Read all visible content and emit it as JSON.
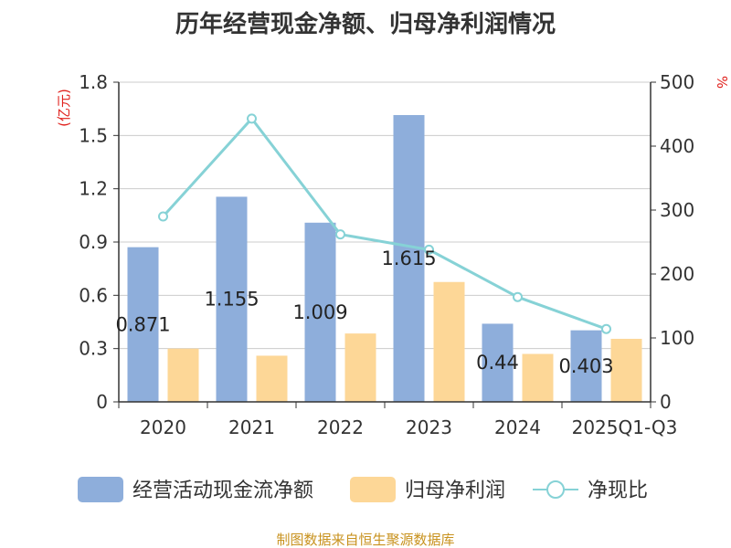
{
  "title": "历年经营现金净额、归母净利润情况",
  "source": "制图数据来自恒生聚源数据库",
  "colors": {
    "bar1": "#8eaedb",
    "bar2": "#fdd797",
    "line": "#86d2d6",
    "unit": "#e0201c",
    "source": "#c8921e"
  },
  "chart_data": {
    "type": "bar",
    "categories": [
      "2020",
      "2021",
      "2022",
      "2023",
      "2024",
      "2025Q1-Q3"
    ],
    "y_left": {
      "unit": "(亿元)",
      "ticks": [
        "0",
        "0.3",
        "0.6",
        "0.9",
        "1.2",
        "1.5",
        "1.8"
      ],
      "range": [
        0,
        1.8
      ]
    },
    "y_right": {
      "unit": "%",
      "ticks": [
        "0",
        "100",
        "200",
        "300",
        "400",
        "500"
      ],
      "range": [
        0,
        500
      ]
    },
    "series": [
      {
        "name": "经营活动现金流净额",
        "type": "bar",
        "axis": "left",
        "values": [
          0.871,
          1.155,
          1.009,
          1.615,
          0.44,
          0.403
        ],
        "labels": [
          "0.871",
          "1.155",
          "1.009",
          "1.615",
          "0.44",
          "0.403"
        ]
      },
      {
        "name": "归母净利润",
        "type": "bar",
        "axis": "left",
        "values": [
          0.3,
          0.26,
          0.385,
          0.675,
          0.27,
          0.355
        ]
      },
      {
        "name": "净现比",
        "type": "line",
        "axis": "right",
        "values": [
          290,
          443,
          262,
          238,
          164,
          114
        ]
      }
    ],
    "grid": true,
    "legend_position": "bottom"
  }
}
